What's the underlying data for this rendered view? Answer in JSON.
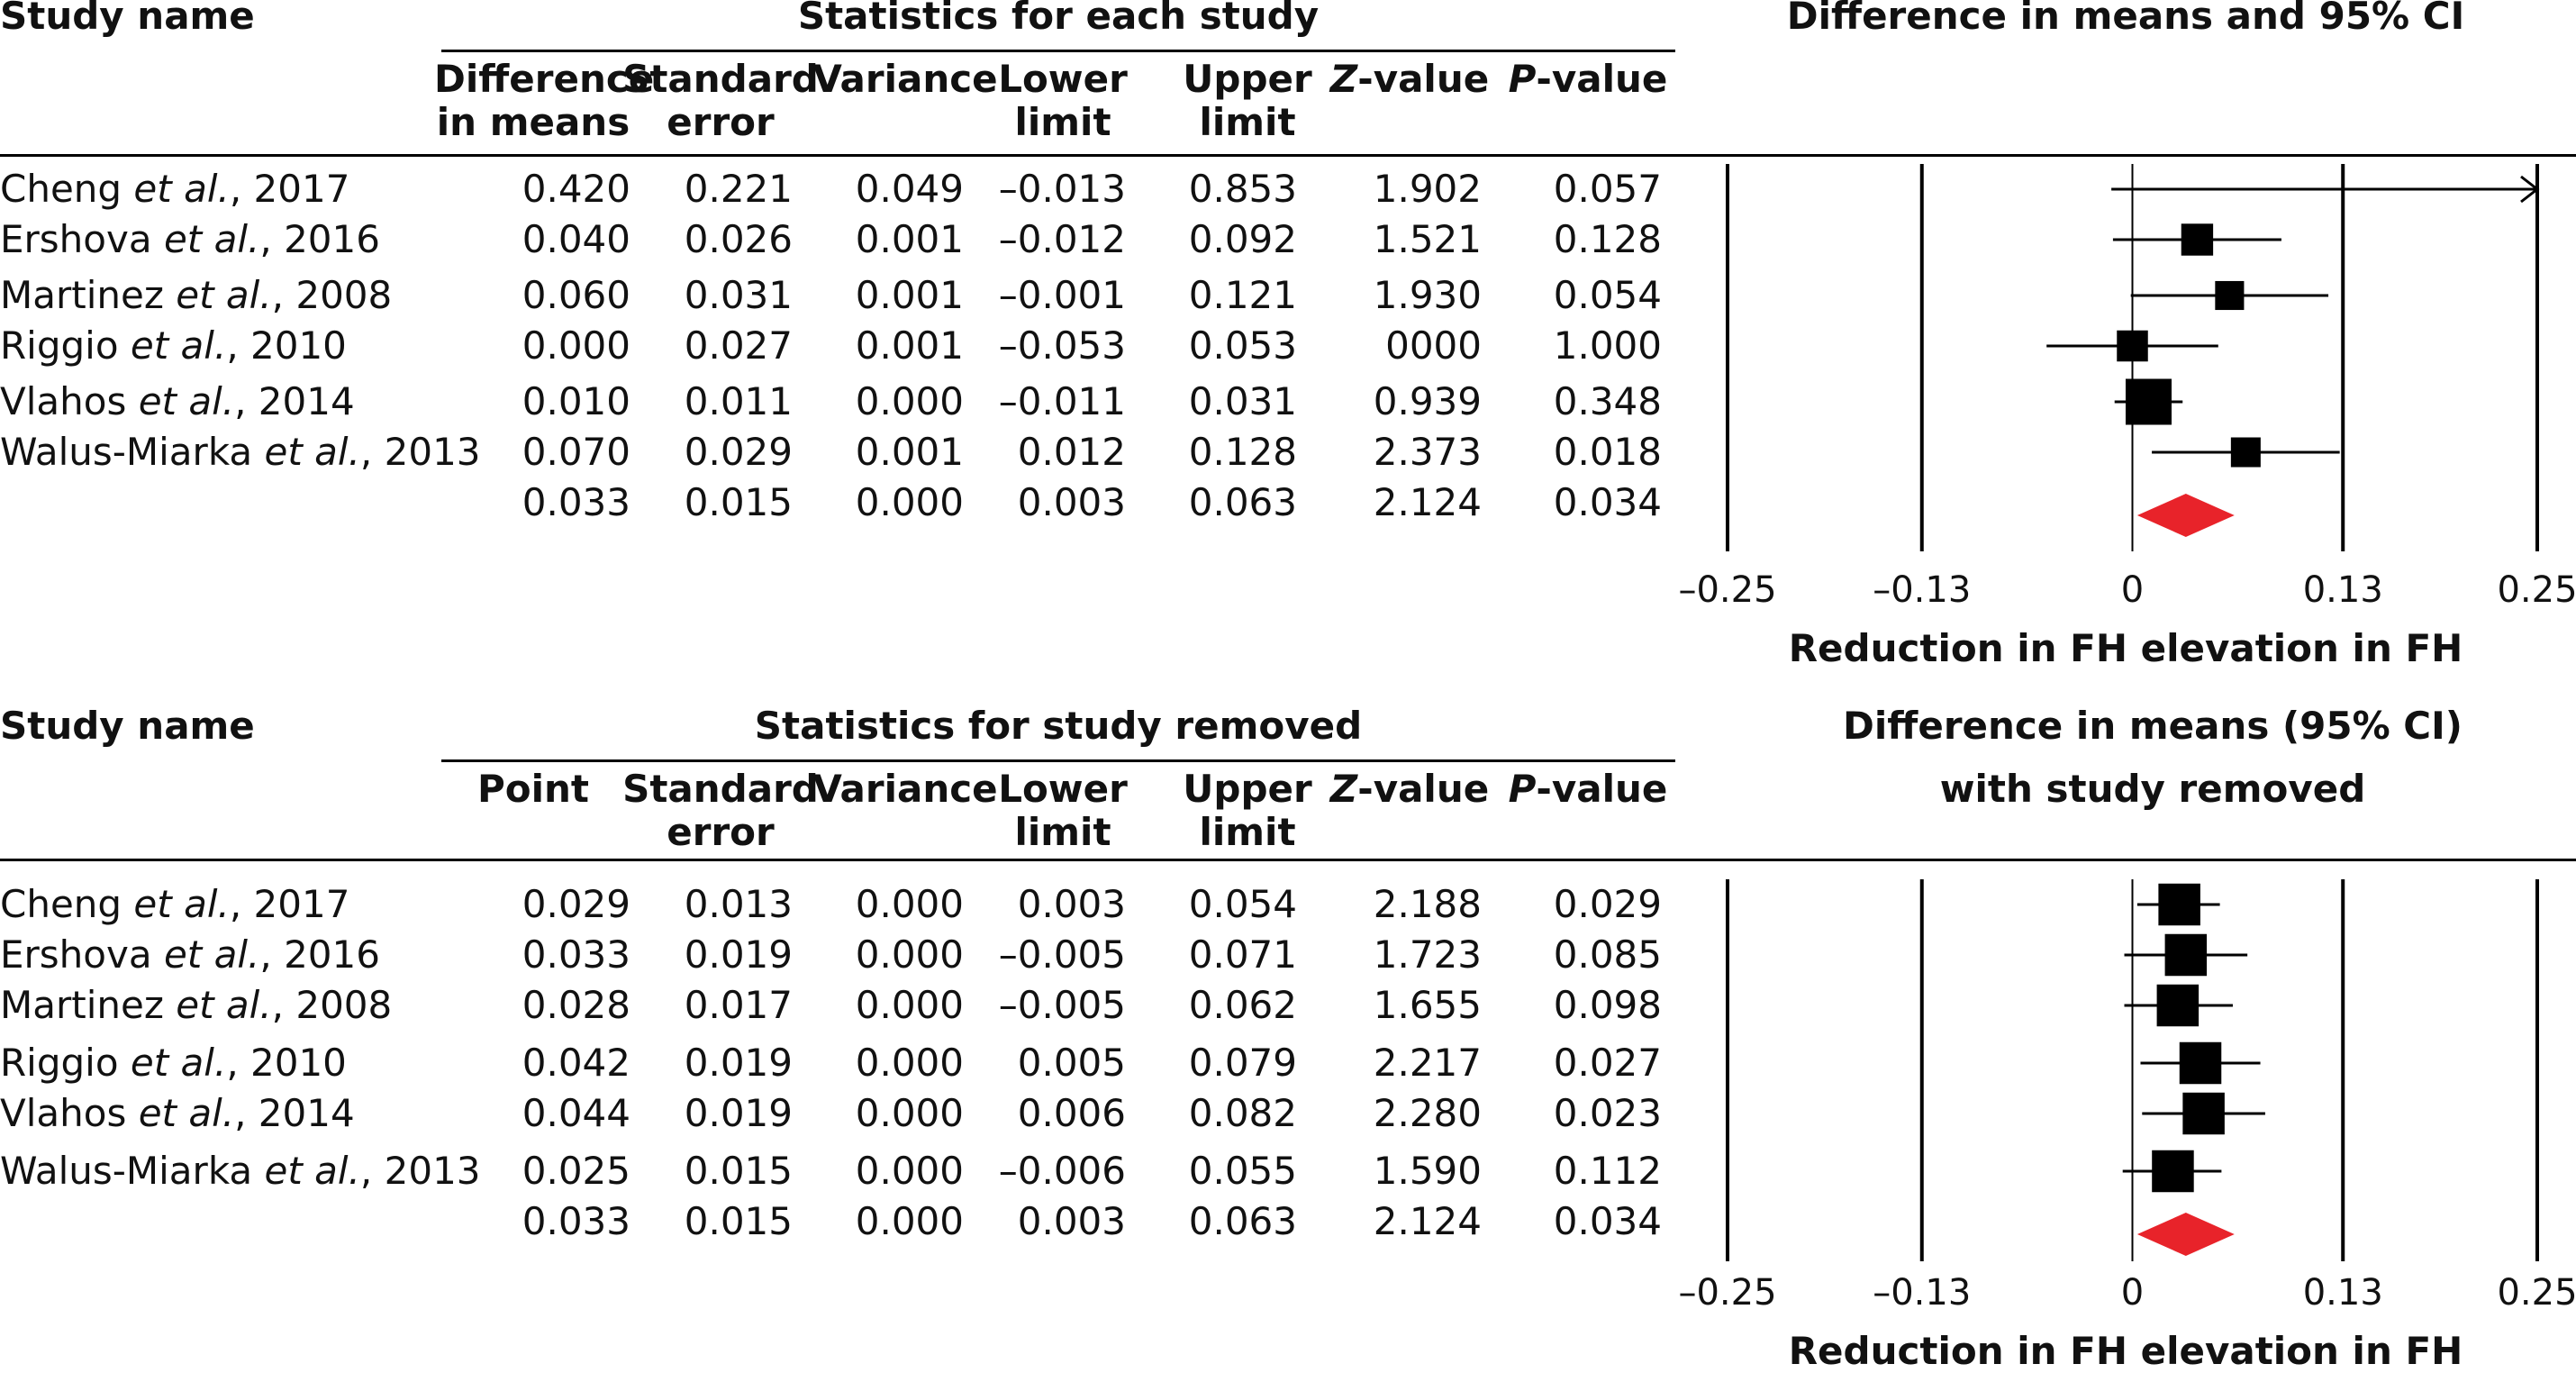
{
  "panels": [
    {
      "study_col_header": "Study name",
      "stats_header": "Statistics for each study",
      "plot_header_line1": "Difference in means and 95% CI",
      "plot_header_line2": "",
      "columns": [
        {
          "line1": "Difference",
          "line2": "in means",
          "italic": ""
        },
        {
          "line1": "Standard",
          "line2": "error",
          "italic": ""
        },
        {
          "line1": "Variance",
          "line2": "",
          "italic": ""
        },
        {
          "line1": "Lower",
          "line2": "limit",
          "italic": ""
        },
        {
          "line1": "Upper",
          "line2": "limit",
          "italic": ""
        },
        {
          "line1": "-value",
          "line2": "",
          "italic": "Z"
        },
        {
          "line1": "-value",
          "line2": "",
          "italic": "P"
        }
      ],
      "rows": [
        {
          "author": "Cheng",
          "etal": "et al.",
          "year": ", 2017",
          "values": [
            "0.420",
            "0.221",
            "0.049",
            "–0.013",
            "0.853",
            "1.902",
            "0.057"
          ]
        },
        {
          "author": "Ershova",
          "etal": "et al.",
          "year": ", 2016",
          "values": [
            "0.040",
            "0.026",
            "0.001",
            "–0.012",
            "0.092",
            "1.521",
            "0.128"
          ]
        },
        {
          "author": "Martinez",
          "etal": "et al.",
          "year": ", 2008",
          "values": [
            "0.060",
            "0.031",
            "0.001",
            "–0.001",
            "0.121",
            "1.930",
            "0.054"
          ]
        },
        {
          "author": "Riggio",
          "etal": "et al.",
          "year": ", 2010",
          "values": [
            "0.000",
            "0.027",
            "0.001",
            "–0.053",
            "0.053",
            "0000",
            "1.000"
          ]
        },
        {
          "author": "Vlahos",
          "etal": "et al.",
          "year": ", 2014",
          "values": [
            "0.010",
            "0.011",
            "0.000",
            "–0.011",
            "0.031",
            "0.939",
            "0.348"
          ]
        },
        {
          "author": "Walus-Miarka",
          "etal": "et al.",
          "year": ", 2013",
          "values": [
            "0.070",
            "0.029",
            "0.001",
            "0.012",
            "0.128",
            "2.373",
            "0.018"
          ]
        },
        {
          "author": "",
          "etal": "",
          "year": "",
          "values": [
            "0.033",
            "0.015",
            "0.000",
            "0.003",
            "0.063",
            "2.124",
            "0.034"
          ]
        }
      ],
      "axis_ticks": [
        "–0.25",
        "–0.13",
        "0",
        "0.13",
        "0.25"
      ],
      "axis_label": "Reduction in FH elevation in FH"
    },
    {
      "study_col_header": "Study name",
      "stats_header": "Statistics for study removed",
      "plot_header_line1": "Difference in means (95% CI)",
      "plot_header_line2": "with study removed",
      "columns": [
        {
          "line1": "Point",
          "line2": "",
          "italic": ""
        },
        {
          "line1": "Standard",
          "line2": "error",
          "italic": ""
        },
        {
          "line1": "Variance",
          "line2": "",
          "italic": ""
        },
        {
          "line1": "Lower",
          "line2": "limit",
          "italic": ""
        },
        {
          "line1": "Upper",
          "line2": "limit",
          "italic": ""
        },
        {
          "line1": "-value",
          "line2": "",
          "italic": "Z"
        },
        {
          "line1": "-value",
          "line2": "",
          "italic": "P"
        }
      ],
      "rows": [
        {
          "author": "Cheng",
          "etal": "et al.",
          "year": ", 2017",
          "values": [
            "0.029",
            "0.013",
            "0.000",
            "0.003",
            "0.054",
            "2.188",
            "0.029"
          ]
        },
        {
          "author": "Ershova",
          "etal": "et al.",
          "year": ", 2016",
          "values": [
            "0.033",
            "0.019",
            "0.000",
            "–0.005",
            "0.071",
            "1.723",
            "0.085"
          ]
        },
        {
          "author": "Martinez",
          "etal": "et al.",
          "year": ", 2008",
          "values": [
            "0.028",
            "0.017",
            "0.000",
            "–0.005",
            "0.062",
            "1.655",
            "0.098"
          ]
        },
        {
          "author": "Riggio",
          "etal": "et al.",
          "year": ", 2010",
          "values": [
            "0.042",
            "0.019",
            "0.000",
            "0.005",
            "0.079",
            "2.217",
            "0.027"
          ]
        },
        {
          "author": "Vlahos",
          "etal": "et al.",
          "year": ", 2014",
          "values": [
            "0.044",
            "0.019",
            "0.000",
            "0.006",
            "0.082",
            "2.280",
            "0.023"
          ]
        },
        {
          "author": "Walus-Miarka",
          "etal": "et al.",
          "year": ", 2013",
          "values": [
            "0.025",
            "0.015",
            "0.000",
            "–0.006",
            "0.055",
            "1.590",
            "0.112"
          ]
        },
        {
          "author": "",
          "etal": "",
          "year": "",
          "values": [
            "0.033",
            "0.015",
            "0.000",
            "0.003",
            "0.063",
            "2.124",
            "0.034"
          ]
        }
      ],
      "axis_ticks": [
        "–0.25",
        "–0.13",
        "0",
        "0.13",
        "0.25"
      ],
      "axis_label": "Reduction in FH elevation in FH"
    }
  ],
  "chart_data": [
    {
      "type": "forest",
      "title": "Difference in means and 95% CI",
      "xlabel": "Reduction in FH elevation in FH",
      "xlim": [
        -0.25,
        0.25
      ],
      "gridlines": [
        -0.25,
        -0.13,
        0.13,
        0.25
      ],
      "colors": {
        "marker": "#000000",
        "summary": "#e8232a"
      },
      "studies": [
        {
          "label": "Cheng et al., 2017",
          "point": 0.42,
          "lower": -0.013,
          "upper": 0.853,
          "weight": 0.05,
          "arrow_right": true
        },
        {
          "label": "Ershova et al., 2016",
          "point": 0.04,
          "lower": -0.012,
          "upper": 0.092,
          "weight": 0.38
        },
        {
          "label": "Martinez et al., 2008",
          "point": 0.06,
          "lower": -0.001,
          "upper": 0.121,
          "weight": 0.27
        },
        {
          "label": "Riggio et al., 2010",
          "point": 0.0,
          "lower": -0.053,
          "upper": 0.053,
          "weight": 0.35
        },
        {
          "label": "Vlahos et al., 2014",
          "point": 0.01,
          "lower": -0.011,
          "upper": 0.031,
          "weight": 0.9
        },
        {
          "label": "Walus-Miarka et al., 2013",
          "point": 0.07,
          "lower": 0.012,
          "upper": 0.128,
          "weight": 0.3
        }
      ],
      "summary": {
        "point": 0.033,
        "lower": 0.003,
        "upper": 0.063
      }
    },
    {
      "type": "forest",
      "title": "Difference in means (95% CI) with study removed",
      "xlabel": "Reduction in FH elevation in FH",
      "xlim": [
        -0.25,
        0.25
      ],
      "gridlines": [
        -0.25,
        -0.13,
        0.13,
        0.25
      ],
      "colors": {
        "marker": "#000000",
        "summary": "#e8232a"
      },
      "studies": [
        {
          "label": "Cheng et al., 2017",
          "point": 0.029,
          "lower": 0.003,
          "upper": 0.054,
          "weight": 0.75
        },
        {
          "label": "Ershova et al., 2016",
          "point": 0.033,
          "lower": -0.005,
          "upper": 0.071,
          "weight": 0.75
        },
        {
          "label": "Martinez et al., 2008",
          "point": 0.028,
          "lower": -0.005,
          "upper": 0.062,
          "weight": 0.75
        },
        {
          "label": "Riggio et al., 2010",
          "point": 0.042,
          "lower": 0.005,
          "upper": 0.079,
          "weight": 0.75
        },
        {
          "label": "Vlahos et al., 2014",
          "point": 0.044,
          "lower": 0.006,
          "upper": 0.082,
          "weight": 0.75
        },
        {
          "label": "Walus-Miarka et al., 2013",
          "point": 0.025,
          "lower": -0.006,
          "upper": 0.055,
          "weight": 0.75
        }
      ],
      "summary": {
        "point": 0.033,
        "lower": 0.003,
        "upper": 0.063
      }
    }
  ]
}
